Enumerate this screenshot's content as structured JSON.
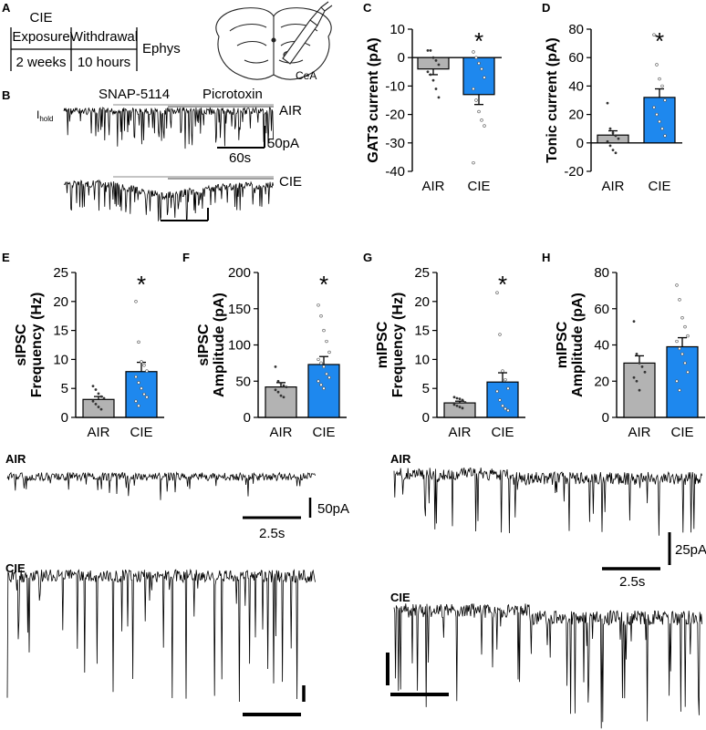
{
  "figure": {
    "panel_letters": [
      "A",
      "B",
      "C",
      "D",
      "E",
      "F",
      "G",
      "H"
    ],
    "colors": {
      "air": "#b3b3b3",
      "cie": "#1e88ee",
      "trace": "#000000",
      "drug_bar": "#a0a0a0"
    },
    "panel_a": {
      "timeline_top": [
        "CIE",
        "Exposure",
        "Withdrawal",
        "Ephys"
      ],
      "timeline_bottom": [
        "2 weeks",
        "10 hours"
      ],
      "region_label": "CeA",
      "brain_icon": "brain-slice-recording-icon"
    },
    "panel_b": {
      "ihold_main": "I",
      "ihold_sub": "hold",
      "drug1": "SNAP-5114",
      "drug2": "Picrotoxin",
      "group_air": "AIR",
      "group_cie": "CIE",
      "scale_current": "50pA",
      "scale_time": "60s"
    },
    "bottom_traces": {
      "sipsc_air_label": "AIR",
      "sipsc_cie_label": "CIE",
      "sipsc_scale_current": "50pA",
      "sipsc_scale_time": "2.5s",
      "mipsc_air_label": "AIR",
      "mipsc_cie_label": "CIE",
      "mipsc_scale_current": "25pA",
      "mipsc_scale_time": "2.5s"
    }
  },
  "chart_data": [
    {
      "id": "C",
      "type": "bar",
      "ylabel": "GAT3 current (pA)",
      "ylim": [
        -40,
        10
      ],
      "yticks": [
        10,
        0,
        -10,
        -20,
        -30,
        -40
      ],
      "categories": [
        "AIR",
        "CIE"
      ],
      "values": [
        -4,
        -13
      ],
      "sem": [
        2,
        3.5
      ],
      "significance": [
        "",
        "*"
      ],
      "points": [
        [
          2.5,
          2.5,
          0,
          -1,
          -2.5,
          -5,
          -6,
          -8,
          -11,
          -14
        ],
        [
          2,
          0,
          -2,
          -4,
          -7,
          -11,
          -15,
          -19,
          -22,
          -24,
          -37
        ]
      ]
    },
    {
      "id": "D",
      "type": "bar",
      "ylabel": "Tonic current (pA)",
      "ylim": [
        -20,
        80
      ],
      "yticks": [
        80,
        60,
        40,
        20,
        0,
        -20
      ],
      "categories": [
        "AIR",
        "CIE"
      ],
      "values": [
        5.5,
        32
      ],
      "sem": [
        3,
        6
      ],
      "significance": [
        "",
        "*"
      ],
      "points": [
        [
          28,
          10,
          7,
          5,
          3,
          1,
          -2,
          -5,
          -7
        ],
        [
          76,
          55,
          45,
          40,
          30,
          25,
          20,
          15,
          10,
          5
        ]
      ]
    },
    {
      "id": "E",
      "type": "bar",
      "ylabel": "Frequency (Hz)",
      "ylabel_top": "sIPSC",
      "ylim": [
        0,
        25
      ],
      "yticks": [
        25,
        20,
        15,
        10,
        5,
        0
      ],
      "categories": [
        "AIR",
        "CIE"
      ],
      "values": [
        3.1,
        7.9
      ],
      "sem": [
        0.5,
        1.6
      ],
      "significance": [
        "",
        "*"
      ],
      "points": [
        [
          5.4,
          4.8,
          4.1,
          3.6,
          3.3,
          2.8,
          2.3,
          1.8,
          1.4
        ],
        [
          20,
          13,
          9.6,
          9,
          8,
          7,
          6,
          5,
          4,
          3.5,
          2.8,
          2
        ]
      ]
    },
    {
      "id": "F",
      "type": "bar",
      "ylabel": "Amplitude (pA)",
      "ylabel_top": "sIPSC",
      "ylim": [
        0,
        200
      ],
      "yticks": [
        200,
        150,
        100,
        50,
        0
      ],
      "categories": [
        "AIR",
        "CIE"
      ],
      "values": [
        42,
        73
      ],
      "sem": [
        6,
        11
      ],
      "significance": [
        "",
        "*"
      ],
      "points": [
        [
          70,
          50,
          47,
          44,
          42,
          38,
          35,
          30,
          28
        ],
        [
          155,
          140,
          120,
          105,
          90,
          80,
          75,
          70,
          60,
          55,
          50,
          45,
          40
        ]
      ]
    },
    {
      "id": "G",
      "type": "bar",
      "ylabel": "Frequency (Hz)",
      "ylabel_top": "mIPSC",
      "ylim": [
        0,
        25
      ],
      "yticks": [
        25,
        20,
        15,
        10,
        5,
        0
      ],
      "categories": [
        "AIR",
        "CIE"
      ],
      "values": [
        2.5,
        6.1
      ],
      "sem": [
        0.3,
        1.6
      ],
      "significance": [
        "",
        "*"
      ],
      "points": [
        [
          3.5,
          3.3,
          3.2,
          3.0,
          2.6,
          2.2,
          2.0,
          1.8,
          1.6
        ],
        [
          21.5,
          14.3,
          8,
          6.5,
          5,
          4.5,
          3,
          2,
          1.5,
          1.2
        ]
      ]
    },
    {
      "id": "H",
      "type": "bar",
      "ylabel": "Amplitude (pA)",
      "ylabel_top": "mIPSC",
      "ylim": [
        0,
        80
      ],
      "yticks": [
        80,
        60,
        40,
        20,
        0
      ],
      "categories": [
        "AIR",
        "CIE"
      ],
      "values": [
        30,
        39
      ],
      "sem": [
        4,
        5
      ],
      "significance": [
        "",
        ""
      ],
      "points": [
        [
          53,
          35,
          30,
          28,
          25,
          22,
          20,
          15
        ],
        [
          73,
          65,
          55,
          50,
          45,
          42,
          38,
          35,
          30,
          25,
          20,
          15
        ]
      ]
    }
  ]
}
